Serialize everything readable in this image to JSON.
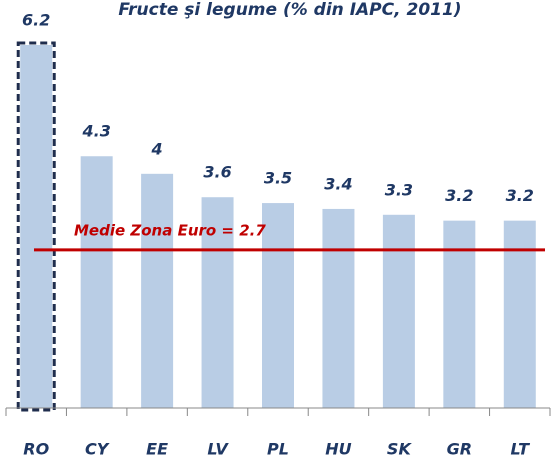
{
  "chart_data": {
    "type": "bar",
    "title": "Fructe şi legume (% din IAPC, 2011)",
    "categories": [
      "RO",
      "CY",
      "EE",
      "LV",
      "PL",
      "HU",
      "SK",
      "GR",
      "LT"
    ],
    "values": [
      6.2,
      4.3,
      4.0,
      3.6,
      3.5,
      3.4,
      3.3,
      3.2,
      3.2
    ],
    "color": "#b9cde5",
    "highlight_category": "RO",
    "reference_line": {
      "label": "Medie Zona Euro = 2.7",
      "value": 2.7,
      "color": "#c00000"
    }
  }
}
